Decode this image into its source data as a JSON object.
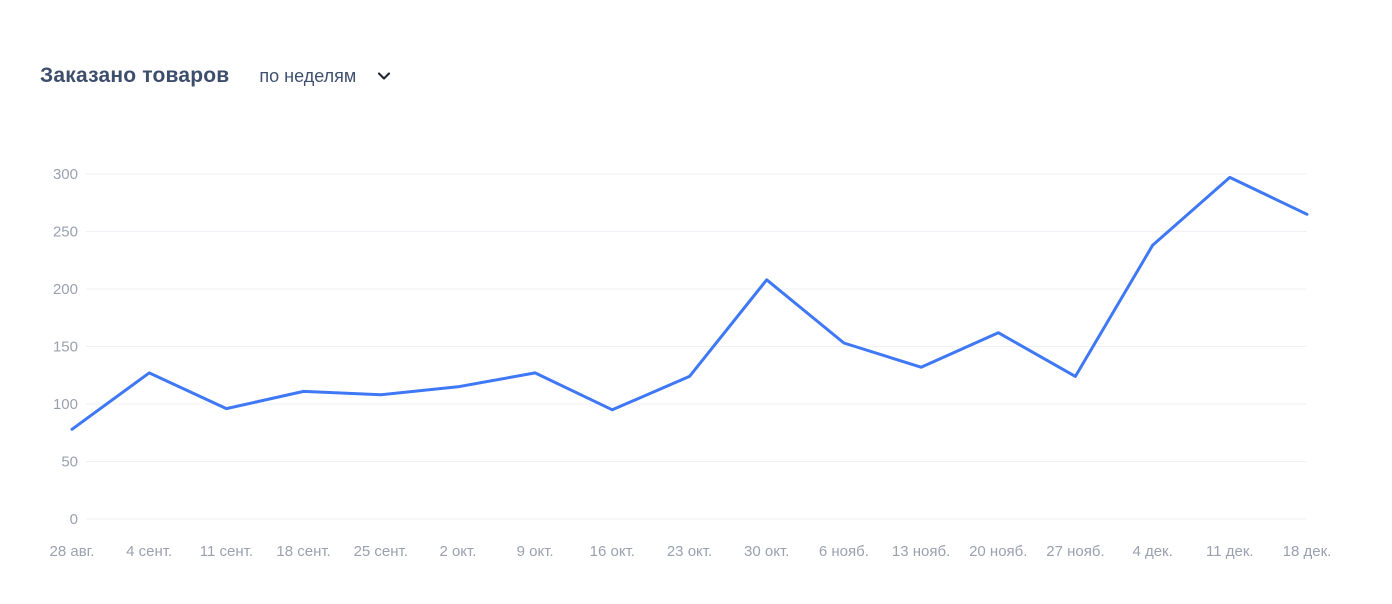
{
  "header": {
    "title": "Заказано товаров",
    "period_selector": {
      "label": "по неделям",
      "icon": "chevron-down-icon"
    }
  },
  "chart_data": {
    "type": "line",
    "title": "Заказано товаров",
    "subtitle": "по неделям",
    "categories": [
      "28 авг.",
      "4 сент.",
      "11 сент.",
      "18 сент.",
      "25 сент.",
      "2 окт.",
      "9 окт.",
      "16 окт.",
      "23 окт.",
      "30 окт.",
      "6 нояб.",
      "13 нояб.",
      "20 нояб.",
      "27 нояб.",
      "4 дек.",
      "11 дек.",
      "18 дек."
    ],
    "values": [
      78,
      127,
      96,
      111,
      108,
      115,
      127,
      95,
      124,
      208,
      153,
      132,
      162,
      124,
      238,
      297,
      265
    ],
    "yticks": [
      0,
      50,
      100,
      150,
      200,
      250,
      300
    ],
    "ylim": [
      0,
      300
    ],
    "xlabel": "",
    "ylabel": "",
    "grid": "horizontal-only",
    "legend": "none",
    "markers": "none",
    "colors": {
      "line": "#3f78f5",
      "grid_line": "#f1f0f6",
      "axis_label": "#9aa1af",
      "title_text": "#3d4e6c",
      "chevron": "#1f2430",
      "background": "#ffffff"
    }
  }
}
